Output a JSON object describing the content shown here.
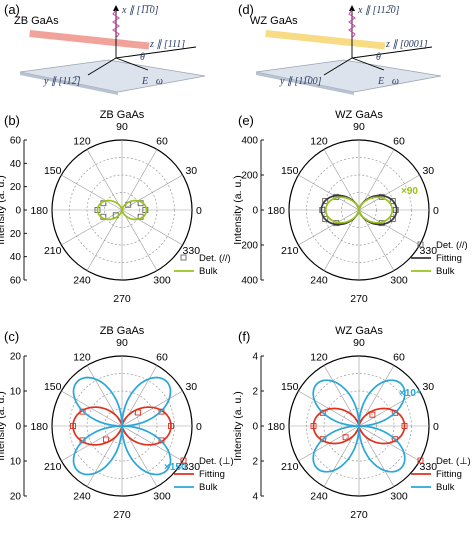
{
  "panel_a": {
    "label": "(a)",
    "material": "ZB GaAs",
    "x_axis": "x ∥ [1̅1̅0]",
    "z_axis": "z ∥ [111]",
    "y_axis": "y ∥ [112̅]",
    "theta": "θ",
    "field": "E⃗ω",
    "beam_color": "#e0301e"
  },
  "panel_d": {
    "label": "(d)",
    "material": "WZ GaAs",
    "x_axis": "x ∥ [112̅0]",
    "z_axis": "z ∥ [0001]",
    "y_axis": "y ∥ [11̅00]",
    "theta": "θ",
    "field": "E⃗ω",
    "beam_color": "#f0c020"
  },
  "colors": {
    "bulk_green": "#9ac21c",
    "fit_black": "#3a3a3a",
    "fit_red": "#e0301e",
    "bulk_blue": "#2aa6d9",
    "det_gray": "#666666"
  },
  "chart_data": [
    {
      "type": "polar",
      "label": "(b)",
      "title": "ZB GaAs",
      "ylabel": "Intensity (a. u.)",
      "rlim": [
        0,
        60
      ],
      "radial_ticks": [
        0,
        20,
        40,
        60
      ],
      "angle_labels": [
        "0",
        "30",
        "60",
        "90",
        "120",
        "150",
        "180",
        "210",
        "240",
        "270",
        "300",
        "330"
      ],
      "grid": true,
      "series": [
        {
          "name": "Det. (//)",
          "kind": "scatter",
          "marker": "open-square",
          "color": "#666666",
          "theta": [
            0,
            20,
            40,
            160,
            180,
            200,
            220,
            340
          ],
          "r": [
            20,
            17,
            7,
            17,
            21,
            17,
            7,
            17
          ]
        },
        {
          "name": "Bulk",
          "kind": "line",
          "color": "#9ac21c",
          "shape": "cos2",
          "rmax": 21
        }
      ],
      "legend": "bottom-right"
    },
    {
      "type": "polar",
      "label": "(e)",
      "title": "WZ GaAs",
      "ylabel": "Intensity (a. u.)",
      "rlim": [
        0,
        400
      ],
      "radial_ticks": [
        0,
        200,
        400
      ],
      "angle_labels": [
        "0",
        "30",
        "60",
        "90",
        "120",
        "150",
        "180",
        "210",
        "240",
        "270",
        "300",
        "330"
      ],
      "grid": true,
      "annotation": "×90",
      "series": [
        {
          "name": "Det. (//)",
          "kind": "scatter",
          "marker": "open-square",
          "color": "#666666",
          "theta": [
            0,
            15,
            30,
            150,
            165,
            180,
            195,
            210,
            330,
            345
          ],
          "r": [
            210,
            200,
            150,
            150,
            200,
            210,
            200,
            150,
            150,
            200
          ]
        },
        {
          "name": "Fitting",
          "kind": "line",
          "color": "#3a3a3a",
          "shape": "cos2",
          "rmax": 215
        },
        {
          "name": "Bulk",
          "kind": "line",
          "color": "#9ac21c",
          "shape": "cos2",
          "rmax": 190
        }
      ],
      "legend": "bottom-right"
    },
    {
      "type": "polar",
      "label": "(c)",
      "title": "ZB GaAs",
      "ylabel": "Intensity (a. u.)",
      "rlim": [
        0,
        20
      ],
      "radial_ticks": [
        0,
        10,
        20
      ],
      "angle_labels": [
        "0",
        "30",
        "60",
        "90",
        "120",
        "150",
        "180",
        "210",
        "240",
        "270",
        "300",
        "330"
      ],
      "grid": true,
      "annotation": "×150",
      "series": [
        {
          "name": "Det. (⊥)",
          "kind": "scatter",
          "marker": "open-square",
          "color": "#e0301e",
          "theta": [
            0,
            20,
            40,
            160,
            180,
            200,
            220,
            340
          ],
          "r": [
            14,
            12,
            6,
            12,
            14,
            12,
            6,
            12
          ]
        },
        {
          "name": "Fitting",
          "kind": "line",
          "color": "#e0301e",
          "shape": "cos2",
          "rmax": 14
        },
        {
          "name": "Bulk",
          "kind": "line",
          "color": "#2aa6d9",
          "shape": "clover",
          "rmax": 18
        }
      ],
      "legend": "bottom-right"
    },
    {
      "type": "polar",
      "label": "(f)",
      "title": "WZ GaAs",
      "ylabel": "Intensity (a. u.)",
      "rlim": [
        0,
        4
      ],
      "radial_ticks": [
        0,
        2,
        4
      ],
      "angle_labels": [
        "0",
        "30",
        "60",
        "90",
        "120",
        "150",
        "180",
        "210",
        "240",
        "270",
        "300",
        "330"
      ],
      "grid": true,
      "annotation": "×10⁴",
      "series": [
        {
          "name": "Det. (⊥)",
          "kind": "scatter",
          "marker": "open-square",
          "color": "#e0301e",
          "theta": [
            0,
            20,
            40,
            160,
            180,
            200,
            220,
            340
          ],
          "r": [
            2.6,
            2.2,
            1.0,
            2.2,
            2.6,
            2.2,
            1.0,
            2.2
          ]
        },
        {
          "name": "Fitting",
          "kind": "line",
          "color": "#e0301e",
          "shape": "cos2",
          "rmax": 2.6
        },
        {
          "name": "Bulk",
          "kind": "line",
          "color": "#2aa6d9",
          "shape": "clover",
          "rmax": 3.4
        }
      ],
      "legend": "bottom-right"
    }
  ]
}
